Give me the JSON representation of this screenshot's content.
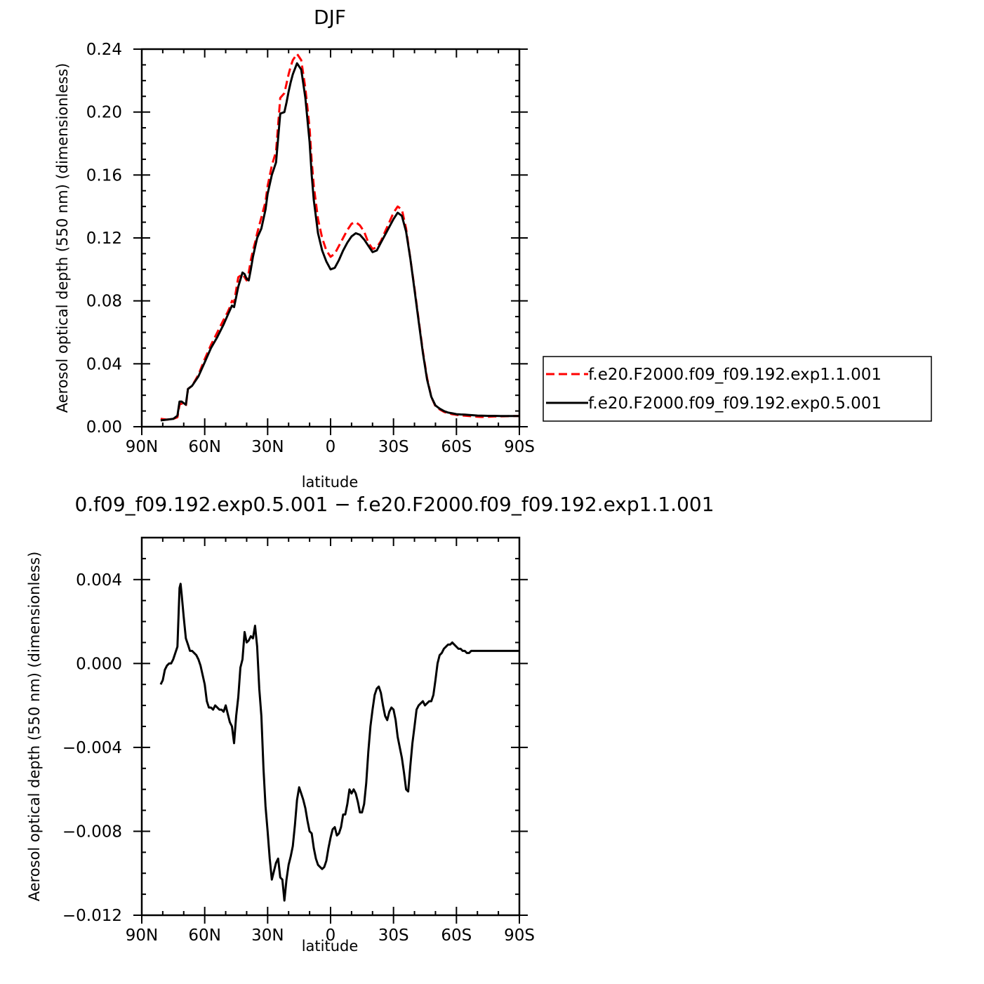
{
  "chart_data": [
    {
      "type": "line",
      "title": "DJF",
      "xlabel": "latitude",
      "ylabel": "Aerosol optical depth (550 nm) (dimensionless)",
      "x_ticks": [
        {
          "value": 90,
          "label": "90N"
        },
        {
          "value": 60,
          "label": "60N"
        },
        {
          "value": 30,
          "label": "30N"
        },
        {
          "value": 0,
          "label": "0"
        },
        {
          "value": -30,
          "label": "30S"
        },
        {
          "value": -60,
          "label": "60S"
        },
        {
          "value": -90,
          "label": "90S"
        }
      ],
      "y_ticks": [
        {
          "value": 0.0,
          "label": "0.00"
        },
        {
          "value": 0.04,
          "label": "0.04"
        },
        {
          "value": 0.08,
          "label": "0.08"
        },
        {
          "value": 0.12,
          "label": "0.12"
        },
        {
          "value": 0.16,
          "label": "0.16"
        },
        {
          "value": 0.2,
          "label": "0.20"
        },
        {
          "value": 0.24,
          "label": "0.24"
        }
      ],
      "xlim": [
        90,
        -90
      ],
      "ylim": [
        0.0,
        0.24
      ],
      "grid": false,
      "legend_position": "right",
      "series": [
        {
          "name": "f.e20.F2000.f09_f09.192.exp1.1.001",
          "color": "#ff0000",
          "dash": "dashed",
          "x": [
            81,
            78,
            75,
            73,
            72,
            71,
            70,
            69,
            68,
            66,
            63,
            60,
            57,
            54,
            51,
            49,
            48,
            47,
            46,
            44,
            42,
            41,
            40,
            39,
            38,
            37,
            36,
            35,
            33,
            31,
            30,
            28,
            26,
            24,
            22,
            21,
            20,
            19,
            18,
            16,
            14,
            12,
            10,
            9,
            8,
            6,
            4,
            2,
            0,
            -2,
            -4,
            -6,
            -8,
            -10,
            -12,
            -14,
            -16,
            -18,
            -20,
            -22,
            -24,
            -26,
            -28,
            -30,
            -32,
            -34,
            -36,
            -38,
            -40,
            -42,
            -44,
            -46,
            -48,
            -50,
            -52,
            -54,
            -56,
            -58,
            -60,
            -62,
            -64,
            -66,
            -68,
            -70,
            -72,
            -75,
            -78,
            -81,
            -84,
            -87,
            -90
          ],
          "y": [
            0.005,
            0.0045,
            0.005,
            0.006,
            0.014,
            0.0148,
            0.014,
            0.013,
            0.024,
            0.026,
            0.033,
            0.043,
            0.052,
            0.06,
            0.068,
            0.073,
            0.076,
            0.08,
            0.079,
            0.095,
            0.097,
            0.095,
            0.093,
            0.098,
            0.106,
            0.112,
            0.117,
            0.123,
            0.133,
            0.143,
            0.153,
            0.166,
            0.175,
            0.209,
            0.212,
            0.218,
            0.224,
            0.229,
            0.233,
            0.237,
            0.233,
            0.215,
            0.19,
            0.169,
            0.153,
            0.132,
            0.12,
            0.112,
            0.108,
            0.11,
            0.115,
            0.12,
            0.125,
            0.129,
            0.13,
            0.128,
            0.124,
            0.117,
            0.113,
            0.114,
            0.118,
            0.124,
            0.13,
            0.136,
            0.14,
            0.138,
            0.126,
            0.107,
            0.088,
            0.068,
            0.048,
            0.031,
            0.019,
            0.013,
            0.011,
            0.0095,
            0.0085,
            0.008,
            0.0076,
            0.0072,
            0.007,
            0.0068,
            0.0066,
            0.0064,
            0.0062,
            0.0063,
            0.0065,
            0.0066,
            0.0067,
            0.0068,
            0.0068
          ],
          "x_note": "latitude in degrees (positive = N, negative = S)"
        },
        {
          "name": "f.e20.F2000.f09_f09.192.exp0.5.001",
          "color": "#000000",
          "dash": "solid",
          "x": [
            81,
            78,
            75,
            73,
            72,
            71,
            70,
            69,
            68,
            66,
            63,
            60,
            57,
            54,
            51,
            49,
            48,
            47,
            46,
            44,
            42,
            41,
            40,
            39,
            38,
            37,
            36,
            35,
            33,
            31,
            30,
            28,
            26,
            24,
            22,
            21,
            20,
            19,
            18,
            16,
            14,
            12,
            10,
            9,
            8,
            6,
            4,
            2,
            0,
            -2,
            -4,
            -6,
            -8,
            -10,
            -12,
            -14,
            -16,
            -18,
            -20,
            -22,
            -24,
            -26,
            -28,
            -30,
            -32,
            -34,
            -36,
            -38,
            -40,
            -42,
            -44,
            -46,
            -48,
            -50,
            -52,
            -54,
            -56,
            -58,
            -60,
            -62,
            -64,
            -66,
            -68,
            -70,
            -72,
            -75,
            -78,
            -81,
            -84,
            -87,
            -90
          ],
          "y": [
            0.004,
            0.0045,
            0.005,
            0.007,
            0.016,
            0.016,
            0.015,
            0.014,
            0.024,
            0.026,
            0.032,
            0.041,
            0.05,
            0.057,
            0.065,
            0.071,
            0.074,
            0.077,
            0.076,
            0.089,
            0.098,
            0.097,
            0.094,
            0.093,
            0.1,
            0.108,
            0.114,
            0.12,
            0.126,
            0.138,
            0.148,
            0.16,
            0.168,
            0.199,
            0.2,
            0.206,
            0.213,
            0.219,
            0.224,
            0.231,
            0.227,
            0.209,
            0.181,
            0.16,
            0.144,
            0.123,
            0.112,
            0.105,
            0.1,
            0.101,
            0.106,
            0.112,
            0.117,
            0.121,
            0.123,
            0.122,
            0.119,
            0.115,
            0.111,
            0.112,
            0.117,
            0.122,
            0.127,
            0.132,
            0.136,
            0.134,
            0.124,
            0.107,
            0.087,
            0.067,
            0.047,
            0.03,
            0.019,
            0.0135,
            0.0115,
            0.01,
            0.009,
            0.0085,
            0.008,
            0.0078,
            0.0077,
            0.0075,
            0.0073,
            0.0071,
            0.007,
            0.0069,
            0.0069,
            0.0068,
            0.0068,
            0.0068,
            0.0068
          ]
        }
      ]
    },
    {
      "type": "line",
      "title": "0.f09_f09.192.exp0.5.001 − f.e20.F2000.f09_f09.192.exp1.1.001",
      "xlabel": "latitude",
      "ylabel": "Aerosol optical depth (550 nm) (dimensionless)",
      "x_ticks": [
        {
          "value": 90,
          "label": "90N"
        },
        {
          "value": 60,
          "label": "60N"
        },
        {
          "value": 30,
          "label": "30N"
        },
        {
          "value": 0,
          "label": "0"
        },
        {
          "value": -30,
          "label": "30S"
        },
        {
          "value": -60,
          "label": "60S"
        },
        {
          "value": -90,
          "label": "90S"
        }
      ],
      "y_ticks": [
        {
          "value": -0.012,
          "label": "−0.012"
        },
        {
          "value": -0.008,
          "label": "−0.008"
        },
        {
          "value": -0.004,
          "label": "−0.004"
        },
        {
          "value": 0.0,
          "label": "0.000"
        },
        {
          "value": 0.004,
          "label": "0.004"
        }
      ],
      "xlim": [
        90,
        -90
      ],
      "ylim": [
        -0.012,
        0.006
      ],
      "grid": false,
      "series": [
        {
          "color": "#000000",
          "dash": "solid",
          "x": [
            81,
            80,
            79,
            78,
            77,
            76,
            75,
            74,
            73,
            72,
            71.5,
            71,
            70,
            69,
            68,
            67,
            66,
            64,
            63,
            62,
            60,
            59,
            58,
            57,
            56,
            55,
            54,
            53,
            52,
            51,
            50,
            49,
            48,
            47,
            46,
            45,
            44,
            43,
            42,
            41,
            40,
            39,
            38,
            37,
            36,
            35,
            34,
            33,
            32,
            31,
            30,
            29,
            28,
            27,
            26,
            25,
            24,
            23,
            22,
            21,
            20,
            19,
            18,
            17,
            16,
            15,
            14,
            13,
            12,
            11,
            10,
            9,
            8,
            7,
            6,
            5,
            4,
            3,
            2,
            1,
            0,
            -1,
            -2,
            -3,
            -4,
            -5,
            -6,
            -7,
            -8,
            -9,
            -10,
            -11,
            -12,
            -13,
            -14,
            -15,
            -16,
            -17,
            -18,
            -19,
            -20,
            -21,
            -22,
            -23,
            -24,
            -25,
            -26,
            -27,
            -28,
            -29,
            -30,
            -31,
            -32,
            -33,
            -34,
            -35,
            -36,
            -37,
            -38,
            -39,
            -40,
            -41,
            -42,
            -43,
            -44,
            -45,
            -46,
            -47,
            -48,
            -49,
            -50,
            -51,
            -52,
            -53,
            -54,
            -55,
            -56,
            -57,
            -58,
            -59,
            -60,
            -61,
            -62,
            -63,
            -64,
            -65,
            -66,
            -67,
            -68,
            -69,
            -70,
            -71,
            -72,
            -73,
            -74,
            -75,
            -76,
            -77,
            -78,
            -79,
            -80,
            -81,
            -82,
            -83,
            -84,
            -85,
            -86,
            -87,
            -88,
            -89,
            -90
          ],
          "y": [
            -0.001,
            -0.0008,
            -0.0003,
            -0.0001,
            0.0,
            0.0,
            0.0002,
            0.0005,
            0.0008,
            0.0036,
            0.0038,
            0.0033,
            0.0022,
            0.0012,
            0.0009,
            0.0006,
            0.0006,
            0.0004,
            0.0002,
            -0.0001,
            -0.001,
            -0.0018,
            -0.0021,
            -0.0021,
            -0.0022,
            -0.002,
            -0.0021,
            -0.0022,
            -0.0022,
            -0.0023,
            -0.002,
            -0.0024,
            -0.0028,
            -0.003,
            -0.0038,
            -0.0025,
            -0.0016,
            -0.0002,
            0.0002,
            0.0015,
            0.001,
            0.0011,
            0.0013,
            0.0012,
            0.0018,
            0.0008,
            -0.0012,
            -0.0025,
            -0.005,
            -0.0068,
            -0.008,
            -0.0093,
            -0.0103,
            -0.0099,
            -0.0095,
            -0.0093,
            -0.0102,
            -0.0103,
            -0.0113,
            -0.0103,
            -0.0096,
            -0.0092,
            -0.0087,
            -0.0077,
            -0.0065,
            -0.0059,
            -0.0062,
            -0.0065,
            -0.0069,
            -0.0075,
            -0.008,
            -0.0081,
            -0.0088,
            -0.0093,
            -0.0096,
            -0.0097,
            -0.0098,
            -0.0097,
            -0.0094,
            -0.0088,
            -0.0083,
            -0.0079,
            -0.0078,
            -0.0082,
            -0.0081,
            -0.0078,
            -0.0072,
            -0.0072,
            -0.0067,
            -0.006,
            -0.0062,
            -0.006,
            -0.0062,
            -0.0066,
            -0.0071,
            -0.0071,
            -0.0067,
            -0.0057,
            -0.0042,
            -0.003,
            -0.0022,
            -0.0015,
            -0.0012,
            -0.0011,
            -0.0014,
            -0.002,
            -0.0025,
            -0.0027,
            -0.0023,
            -0.0021,
            -0.0022,
            -0.0027,
            -0.0035,
            -0.004,
            -0.0045,
            -0.0052,
            -0.006,
            -0.0061,
            -0.0049,
            -0.0038,
            -0.003,
            -0.0022,
            -0.002,
            -0.0019,
            -0.0018,
            -0.002,
            -0.0019,
            -0.0018,
            -0.0018,
            -0.0015,
            -0.0008,
            0.0,
            0.0004,
            0.0005,
            0.0007,
            0.0008,
            0.0009,
            0.0009,
            0.001,
            0.0009,
            0.0008,
            0.0007,
            0.0007,
            0.0006,
            0.0006,
            0.0005,
            0.0005,
            0.0006,
            0.0006,
            0.0006,
            0.0006,
            0.0006,
            0.0006,
            0.0006,
            0.0006,
            0.0006,
            0.0006,
            0.0006,
            0.0006,
            0.0006,
            0.0006,
            0.0006,
            0.0006,
            0.0006,
            0.0006,
            0.0006,
            0.0006,
            0.0006,
            0.0006,
            0.0006,
            0.0006
          ]
        }
      ]
    }
  ]
}
